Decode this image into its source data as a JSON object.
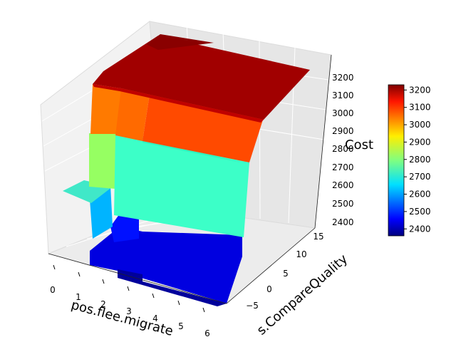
{
  "chart_data": {
    "type": "surface3d",
    "title": "",
    "xlabel": "pos.flee.migrate",
    "ylabel": "s.CompareQuality",
    "zlabel": "Cost",
    "xlim": [
      0,
      6
    ],
    "ylim": [
      -5,
      18
    ],
    "zlim": [
      2350,
      3250
    ],
    "x_ticks": [
      "0",
      "1",
      "2",
      "3",
      "4",
      "5",
      "6"
    ],
    "y_ticks": [
      "−5",
      "0",
      "5",
      "10",
      "15"
    ],
    "z_ticks": [
      "2400",
      "2500",
      "2600",
      "2700",
      "2800",
      "2900",
      "3000",
      "3100",
      "3200"
    ],
    "colormap": "jet",
    "colorbar": {
      "range": [
        2360,
        3230
      ],
      "ticks": [
        "2400",
        "2500",
        "2600",
        "2700",
        "2800",
        "2900",
        "3000",
        "3100",
        "3200"
      ]
    },
    "surface_levels": [
      {
        "region": "top plateau",
        "cost": 3210
      },
      {
        "region": "upper step",
        "cost": 3040
      },
      {
        "region": "middle step",
        "cost": 2730
      },
      {
        "region": "lower step",
        "cost": 2390
      }
    ]
  }
}
